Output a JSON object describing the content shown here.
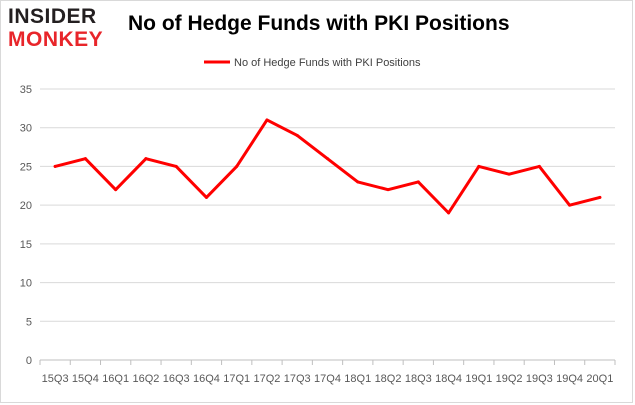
{
  "logo": {
    "line1": "INSIDER",
    "line2": "MONKEY"
  },
  "chart_data": {
    "type": "line",
    "title": "No of Hedge Funds with PKI Positions",
    "xlabel": "",
    "ylabel": "",
    "categories": [
      "15Q3",
      "15Q4",
      "16Q1",
      "16Q2",
      "16Q3",
      "16Q4",
      "17Q1",
      "17Q2",
      "17Q3",
      "17Q4",
      "18Q1",
      "18Q2",
      "18Q3",
      "18Q4",
      "19Q1",
      "19Q2",
      "19Q3",
      "19Q4",
      "20Q1"
    ],
    "series": [
      {
        "name": "No of Hedge Funds with PKI Positions",
        "color": "#ff0000",
        "values": [
          25,
          26,
          22,
          26,
          25,
          21,
          25,
          31,
          29,
          26,
          23,
          22,
          23,
          19,
          25,
          24,
          25,
          20,
          21
        ]
      }
    ],
    "ylim": [
      0,
      35
    ],
    "yticks": [
      0,
      5,
      10,
      15,
      20,
      25,
      30,
      35
    ],
    "grid": true,
    "legend_position": "top-center",
    "colors": {
      "grid": "#d9d9d9",
      "axis": "#bfbfbf"
    }
  }
}
